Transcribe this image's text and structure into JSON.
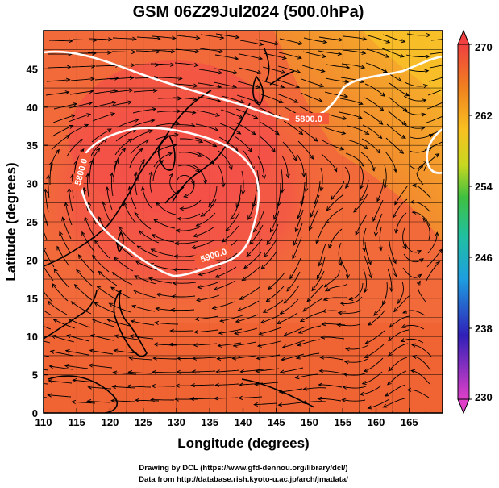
{
  "title": "GSM 06Z29Jul2024 (500.0hPa)",
  "x_axis_label": "Longitude (degrees)",
  "y_axis_label": "Latitude  (degrees)",
  "credits": {
    "line1": "Drawing by DCL (https://www.gfd-dennou.org/library/dcl/)",
    "line2": "Data from http://database.rish.kyoto-u.ac.jp/arch/jmadata/"
  },
  "map": {
    "lon_range": [
      110,
      170
    ],
    "lat_range": [
      0,
      50
    ],
    "lon_ticks": [
      "110",
      "115",
      "120",
      "125",
      "130",
      "135",
      "140",
      "145",
      "150",
      "155",
      "160",
      "165"
    ],
    "lat_ticks": [
      "0",
      "5",
      "10",
      "15",
      "20",
      "25",
      "30",
      "35",
      "40",
      "45"
    ],
    "grid": true,
    "field": "temperature",
    "contour_labels": [
      {
        "text": "5800.0",
        "lon": 151.5,
        "lat": 40.0
      },
      {
        "text": "5800.0",
        "lon": 114.0,
        "lat": 32.0
      },
      {
        "text": "5900.0",
        "lon": 136.0,
        "lat": 22.5
      }
    ],
    "colors": {
      "dominant": "#f26a3a",
      "high_core": "#f3514a",
      "north_east": "#f7b02a"
    }
  },
  "colorbar": {
    "ticks": [
      "270",
      "262",
      "254",
      "246",
      "238",
      "230"
    ],
    "min": 230,
    "max": 270,
    "colors": [
      "#e040c8",
      "#3020b8",
      "#1e9fe0",
      "#20c0a0",
      "#40c040",
      "#c8d820",
      "#f8c020",
      "#f08020",
      "#f04040"
    ]
  }
}
